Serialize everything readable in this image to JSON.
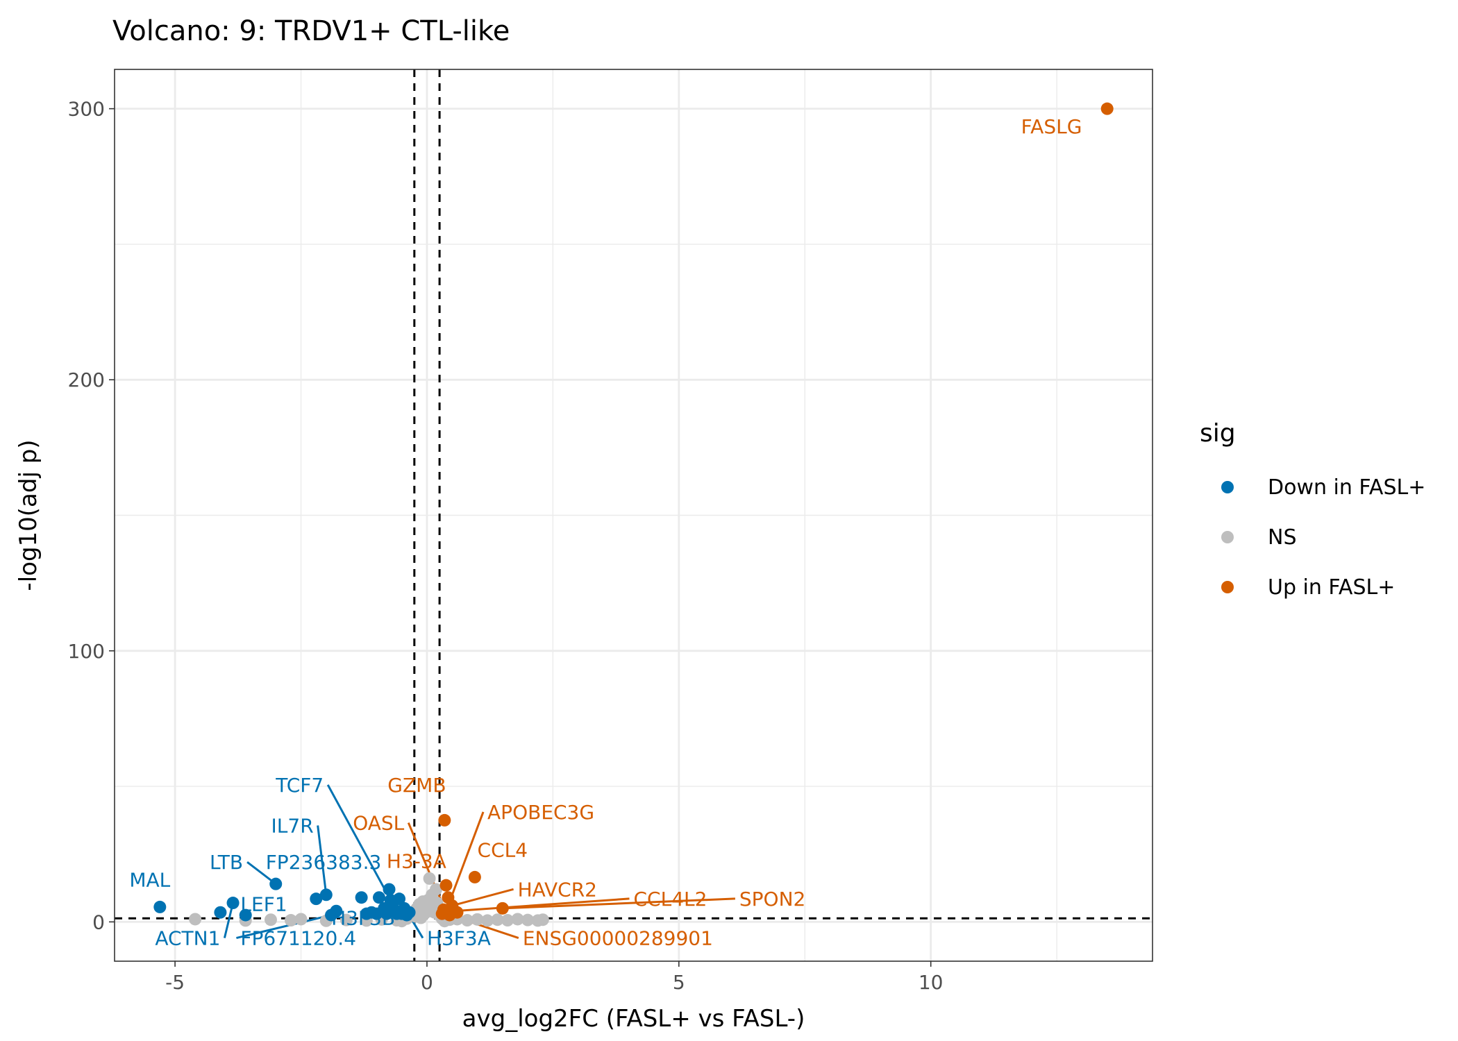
{
  "chart_data": {
    "type": "scatter",
    "title": "Volcano: 9: TRDV1+ CTL-like",
    "xlabel": "avg_log2FC (FASL+ vs FASL-)",
    "ylabel": "-log10(adj p)",
    "xlim": [
      -6.2,
      14.4
    ],
    "ylim": [
      -14.5,
      314.5
    ],
    "x_ticks": [
      -5,
      0,
      5,
      10
    ],
    "x_tick_labels": [
      "-5",
      "0",
      "5",
      "10"
    ],
    "y_ticks": [
      0,
      100,
      200,
      300
    ],
    "y_tick_labels": [
      "0",
      "100",
      "200",
      "300"
    ],
    "grid": true,
    "thresholds": {
      "x": [
        -0.25,
        0.25
      ],
      "y": 1.3
    },
    "colors": {
      "down": "#0072b2",
      "ns": "#bebebe",
      "up": "#d55e00"
    },
    "legend": {
      "title": "sig",
      "position": "right",
      "entries": [
        {
          "label": "Down in FASL+",
          "color": "#0072b2"
        },
        {
          "label": "NS",
          "color": "#bebebe"
        },
        {
          "label": "Up in FASL+",
          "color": "#d55e00"
        }
      ]
    },
    "series": [
      {
        "name": "Down in FASL+",
        "color": "#0072b2",
        "points": [
          [
            -5.3,
            5.5
          ],
          [
            -4.1,
            3.5
          ],
          [
            -3.85,
            7.0
          ],
          [
            -3.6,
            2.5
          ],
          [
            -3.0,
            14.0
          ],
          [
            -2.2,
            8.5
          ],
          [
            -2.0,
            10.0
          ],
          [
            -1.9,
            2.5
          ],
          [
            -1.8,
            4.0
          ],
          [
            -1.3,
            9.0
          ],
          [
            -1.2,
            3.0
          ],
          [
            -1.1,
            3.5
          ],
          [
            -1.0,
            3.0
          ],
          [
            -0.95,
            9.0
          ],
          [
            -0.85,
            5.0
          ],
          [
            -0.8,
            3.0
          ],
          [
            -0.75,
            12.0
          ],
          [
            -0.72,
            8.0
          ],
          [
            -0.65,
            4.5
          ],
          [
            -0.6,
            3.0
          ],
          [
            -0.55,
            8.5
          ],
          [
            -0.5,
            3.0
          ],
          [
            -0.45,
            5.0
          ],
          [
            -0.4,
            2.5
          ],
          [
            -0.35,
            3.5
          ]
        ]
      },
      {
        "name": "NS",
        "color": "#bebebe",
        "points": [
          [
            -4.6,
            1.0
          ],
          [
            -3.6,
            0.5
          ],
          [
            -3.1,
            0.8
          ],
          [
            -2.7,
            0.6
          ],
          [
            -2.5,
            1.0
          ],
          [
            -2.0,
            0.4
          ],
          [
            -1.6,
            0.7
          ],
          [
            -1.2,
            0.5
          ],
          [
            -0.9,
            0.9
          ],
          [
            -0.6,
            0.6
          ],
          [
            -0.4,
            1.2
          ],
          [
            -0.3,
            3.0
          ],
          [
            -0.2,
            5.0
          ],
          [
            -0.15,
            6.5
          ],
          [
            -0.1,
            4.0
          ],
          [
            -0.08,
            7.5
          ],
          [
            -0.05,
            3.0
          ],
          [
            0.0,
            5.0
          ],
          [
            0.02,
            8.0
          ],
          [
            0.05,
            16.0
          ],
          [
            0.07,
            4.0
          ],
          [
            0.1,
            10.0
          ],
          [
            0.12,
            6.0
          ],
          [
            0.15,
            3.5
          ],
          [
            0.18,
            12.0
          ],
          [
            0.2,
            7.0
          ],
          [
            0.22,
            4.0
          ],
          [
            0.24,
            2.5
          ],
          [
            -0.22,
            2.0
          ],
          [
            -0.12,
            1.5
          ],
          [
            0.3,
            1.2
          ],
          [
            0.45,
            0.8
          ],
          [
            0.6,
            1.0
          ],
          [
            0.8,
            0.6
          ],
          [
            1.0,
            0.9
          ],
          [
            1.2,
            0.5
          ],
          [
            1.4,
            0.8
          ],
          [
            1.6,
            0.6
          ],
          [
            1.8,
            1.0
          ],
          [
            2.0,
            0.7
          ],
          [
            2.2,
            0.5
          ],
          [
            2.3,
            0.8
          ],
          [
            0.35,
            0.3
          ],
          [
            -0.5,
            0.3
          ]
        ]
      },
      {
        "name": "Up in FASL+",
        "color": "#d55e00",
        "points": [
          [
            13.5,
            300.0
          ],
          [
            0.35,
            37.5
          ],
          [
            0.38,
            13.5
          ],
          [
            0.95,
            16.5
          ],
          [
            0.42,
            9.0
          ],
          [
            0.5,
            6.0
          ],
          [
            0.55,
            4.0
          ],
          [
            1.5,
            5.0
          ],
          [
            0.3,
            3.0
          ],
          [
            0.45,
            2.5
          ],
          [
            0.6,
            3.5
          ],
          [
            0.33,
            4.5
          ]
        ]
      }
    ],
    "labels": [
      {
        "text": "FASLG",
        "group": "up",
        "point": [
          13.5,
          300.0
        ],
        "label_at": [
          13.0,
          291.0
        ],
        "anchor": "end",
        "line": false
      },
      {
        "text": "GZMB",
        "group": "up",
        "point": [
          0.35,
          37.5
        ],
        "label_at": [
          -0.2,
          48.0
        ],
        "anchor": "middle",
        "line": false
      },
      {
        "text": "APOBEC3G",
        "group": "up",
        "point": [
          0.4,
          5.0
        ],
        "label_at": [
          1.2,
          38.0
        ],
        "anchor": "start",
        "line": true
      },
      {
        "text": "OASL",
        "group": "up",
        "point": [
          0.3,
          7.0
        ],
        "label_at": [
          -0.45,
          34.0
        ],
        "anchor": "end",
        "line": true
      },
      {
        "text": "CCL4",
        "group": "up",
        "point": [
          0.95,
          16.5
        ],
        "label_at": [
          1.0,
          24.0
        ],
        "anchor": "start",
        "line": false
      },
      {
        "text": "H3-3A",
        "group": "up",
        "point": [
          0.38,
          13.5
        ],
        "label_at": [
          -0.8,
          20.0
        ],
        "anchor": "start",
        "line": false
      },
      {
        "text": "HAVCR2",
        "group": "up",
        "point": [
          0.5,
          6.0
        ],
        "label_at": [
          1.8,
          9.5
        ],
        "anchor": "start",
        "line": true
      },
      {
        "text": "CCL4L2",
        "group": "up",
        "point": [
          0.55,
          4.0
        ],
        "label_at": [
          4.1,
          6.0
        ],
        "anchor": "start",
        "line": true
      },
      {
        "text": "SPON2",
        "group": "up",
        "point": [
          1.5,
          5.0
        ],
        "label_at": [
          6.2,
          6.0
        ],
        "anchor": "start",
        "line": true
      },
      {
        "text": "ENSG00000289901",
        "group": "up",
        "point": [
          0.45,
          2.5
        ],
        "label_at": [
          1.9,
          -8.5
        ],
        "anchor": "start",
        "line": true
      },
      {
        "text": "TCF7",
        "group": "down",
        "point": [
          -0.72,
          8.0
        ],
        "label_at": [
          -2.05,
          48.0
        ],
        "anchor": "end",
        "line": true
      },
      {
        "text": "IL7R",
        "group": "down",
        "point": [
          -2.0,
          10.0
        ],
        "label_at": [
          -2.25,
          33.0
        ],
        "anchor": "end",
        "line": true
      },
      {
        "text": "LTB",
        "group": "down",
        "point": [
          -3.0,
          14.0
        ],
        "label_at": [
          -3.65,
          19.5
        ],
        "anchor": "end",
        "line": true
      },
      {
        "text": "FP236383.3",
        "group": "down",
        "point": [
          -0.75,
          12.0
        ],
        "label_at": [
          -3.2,
          19.5
        ],
        "anchor": "start",
        "line": false
      },
      {
        "text": "MAL",
        "group": "down",
        "point": [
          -5.3,
          5.5
        ],
        "label_at": [
          -5.5,
          13.0
        ],
        "anchor": "middle",
        "line": false
      },
      {
        "text": "LEF1",
        "group": "down",
        "point": [
          -3.85,
          7.0
        ],
        "label_at": [
          -3.7,
          4.0
        ],
        "anchor": "start",
        "line": false
      },
      {
        "text": "ACTN1",
        "group": "down",
        "point": [
          -3.85,
          7.0
        ],
        "label_at": [
          -4.1,
          -8.5
        ],
        "anchor": "end",
        "line": true
      },
      {
        "text": "FP671120.4",
        "group": "down",
        "point": [
          -1.9,
          2.5
        ],
        "label_at": [
          -3.7,
          -8.5
        ],
        "anchor": "start",
        "line": true
      },
      {
        "text": "H3F3B",
        "group": "down",
        "point": [
          -1.3,
          3.0
        ],
        "label_at": [
          -1.9,
          -1.0
        ],
        "anchor": "start",
        "line": false
      },
      {
        "text": "H3F3A",
        "group": "down",
        "point": [
          -0.55,
          8.5
        ],
        "label_at": [
          0.0,
          -8.5
        ],
        "anchor": "start",
        "line": true
      }
    ]
  }
}
